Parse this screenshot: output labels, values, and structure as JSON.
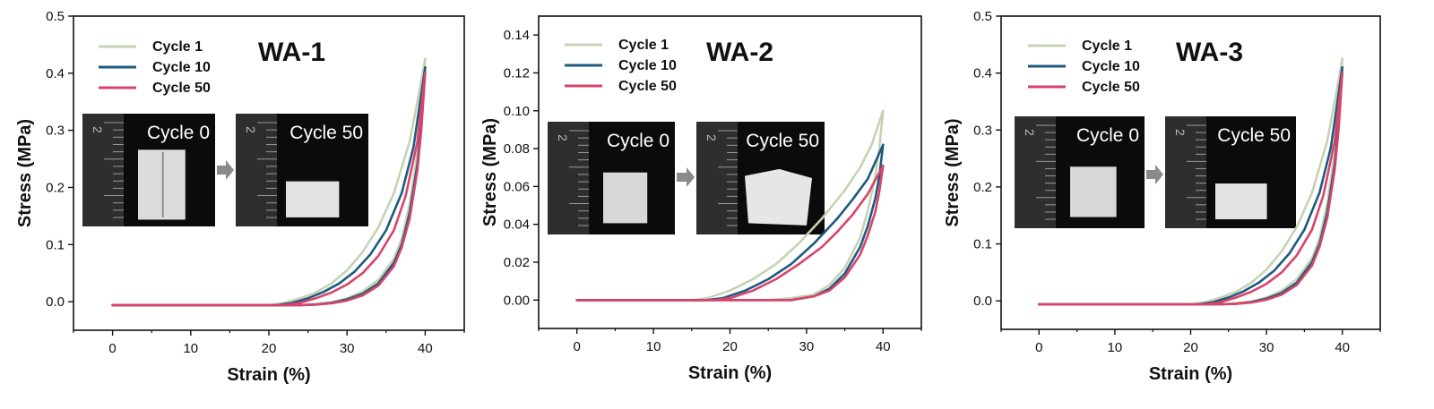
{
  "chart_data": [
    {
      "type": "line",
      "title": "WA-1",
      "xlabel": "Strain (%)",
      "ylabel": "Stress (MPa)",
      "xlim": [
        -5,
        45
      ],
      "ylim": [
        -0.05,
        0.5
      ],
      "xticks": [
        0,
        10,
        20,
        30,
        40
      ],
      "xtick_labels": [
        "0",
        "10",
        "20",
        "30",
        "40"
      ],
      "yticks": [
        0.0,
        0.1,
        0.2,
        0.3,
        0.4,
        0.5
      ],
      "ytick_labels": [
        "0.0",
        "0.1",
        "0.2",
        "0.3",
        "0.4",
        "0.5"
      ],
      "legend_position": "top-left",
      "series": [
        {
          "name": "Cycle 1",
          "color": "#c5d3b4",
          "loading": [
            [
              0,
              -0.006
            ],
            [
              20,
              -0.006
            ],
            [
              22,
              -0.002
            ],
            [
              24,
              0.006
            ],
            [
              26,
              0.016
            ],
            [
              28,
              0.032
            ],
            [
              30,
              0.055
            ],
            [
              32,
              0.087
            ],
            [
              34,
              0.13
            ],
            [
              36,
              0.19
            ],
            [
              38,
              0.28
            ],
            [
              39,
              0.35
            ],
            [
              40,
              0.425
            ]
          ],
          "unloading": [
            [
              40,
              0.425
            ],
            [
              39.5,
              0.33
            ],
            [
              39,
              0.26
            ],
            [
              38,
              0.17
            ],
            [
              37,
              0.11
            ],
            [
              36,
              0.075
            ],
            [
              34,
              0.038
            ],
            [
              32,
              0.018
            ],
            [
              30,
              0.006
            ],
            [
              28,
              -0.001
            ],
            [
              26,
              -0.004
            ],
            [
              24,
              -0.006
            ],
            [
              0,
              -0.006
            ]
          ]
        },
        {
          "name": "Cycle 10",
          "color": "#1d5a7e",
          "loading": [
            [
              0,
              -0.006
            ],
            [
              21,
              -0.006
            ],
            [
              23,
              -0.002
            ],
            [
              25,
              0.006
            ],
            [
              27,
              0.017
            ],
            [
              29,
              0.032
            ],
            [
              31,
              0.053
            ],
            [
              33,
              0.083
            ],
            [
              35,
              0.125
            ],
            [
              37,
              0.19
            ],
            [
              38.5,
              0.27
            ],
            [
              40,
              0.41
            ]
          ],
          "unloading": [
            [
              40,
              0.41
            ],
            [
              39.5,
              0.31
            ],
            [
              39,
              0.24
            ],
            [
              38,
              0.155
            ],
            [
              37,
              0.1
            ],
            [
              36,
              0.068
            ],
            [
              34,
              0.032
            ],
            [
              32,
              0.014
            ],
            [
              30,
              0.004
            ],
            [
              28,
              -0.002
            ],
            [
              26,
              -0.005
            ],
            [
              24,
              -0.006
            ],
            [
              0,
              -0.006
            ]
          ]
        },
        {
          "name": "Cycle 50",
          "color": "#d9436a",
          "loading": [
            [
              0,
              -0.006
            ],
            [
              22,
              -0.006
            ],
            [
              24,
              -0.002
            ],
            [
              26,
              0.006
            ],
            [
              28,
              0.016
            ],
            [
              30,
              0.03
            ],
            [
              32,
              0.05
            ],
            [
              34,
              0.08
            ],
            [
              36,
              0.125
            ],
            [
              37.5,
              0.185
            ],
            [
              39,
              0.28
            ],
            [
              40,
              0.4
            ]
          ],
          "unloading": [
            [
              40,
              0.4
            ],
            [
              39.5,
              0.3
            ],
            [
              39,
              0.23
            ],
            [
              38,
              0.145
            ],
            [
              37,
              0.095
            ],
            [
              36,
              0.062
            ],
            [
              34,
              0.028
            ],
            [
              32,
              0.011
            ],
            [
              30,
              0.002
            ],
            [
              28,
              -0.003
            ],
            [
              26,
              -0.005
            ],
            [
              24,
              -0.006
            ],
            [
              0,
              -0.006
            ]
          ]
        }
      ],
      "inset": {
        "left_label": "Cycle 0",
        "right_label": "Cycle 50",
        "scale_digit": "2"
      }
    },
    {
      "type": "line",
      "title": "WA-2",
      "xlabel": "Strain (%)",
      "ylabel": "Stress (MPa)",
      "xlim": [
        -5,
        45
      ],
      "ylim": [
        -0.015,
        0.15
      ],
      "xticks": [
        0,
        10,
        20,
        30,
        40
      ],
      "xtick_labels": [
        "0",
        "10",
        "20",
        "30",
        "40"
      ],
      "yticks": [
        0.0,
        0.02,
        0.04,
        0.06,
        0.08,
        0.1,
        0.12,
        0.14
      ],
      "ytick_labels": [
        "0.00",
        "0.02",
        "0.04",
        "0.06",
        "0.08",
        "0.10",
        "0.12",
        "0.14"
      ],
      "legend_position": "top-left",
      "series": [
        {
          "name": "Cycle 1",
          "color": "#c5d3b4",
          "loading": [
            [
              0,
              0
            ],
            [
              15,
              0
            ],
            [
              17,
              0.001
            ],
            [
              20,
              0.005
            ],
            [
              23,
              0.011
            ],
            [
              26,
              0.019
            ],
            [
              29,
              0.03
            ],
            [
              32,
              0.043
            ],
            [
              35,
              0.058
            ],
            [
              37,
              0.07
            ],
            [
              38.5,
              0.082
            ],
            [
              40,
              0.1
            ]
          ],
          "unloading": [
            [
              40,
              0.1
            ],
            [
              39.5,
              0.08
            ],
            [
              39,
              0.066
            ],
            [
              38,
              0.047
            ],
            [
              37,
              0.033
            ],
            [
              35,
              0.017
            ],
            [
              33,
              0.008
            ],
            [
              31,
              0.003
            ],
            [
              28,
              0.001
            ],
            [
              25,
              0
            ],
            [
              0,
              0
            ]
          ]
        },
        {
          "name": "Cycle 10",
          "color": "#1d5a7e",
          "loading": [
            [
              0,
              0
            ],
            [
              17,
              0
            ],
            [
              19,
              0.001
            ],
            [
              22,
              0.005
            ],
            [
              25,
              0.011
            ],
            [
              28,
              0.019
            ],
            [
              31,
              0.03
            ],
            [
              34,
              0.043
            ],
            [
              36,
              0.053
            ],
            [
              38,
              0.064
            ],
            [
              40,
              0.082
            ]
          ],
          "unloading": [
            [
              40,
              0.082
            ],
            [
              39.5,
              0.065
            ],
            [
              39,
              0.054
            ],
            [
              38,
              0.039
            ],
            [
              37,
              0.028
            ],
            [
              35,
              0.014
            ],
            [
              33,
              0.006
            ],
            [
              31,
              0.002
            ],
            [
              28,
              0
            ],
            [
              0,
              0
            ]
          ]
        },
        {
          "name": "Cycle 50",
          "color": "#d9436a",
          "loading": [
            [
              0,
              0
            ],
            [
              18,
              0
            ],
            [
              20,
              0.001
            ],
            [
              23,
              0.005
            ],
            [
              26,
              0.011
            ],
            [
              29,
              0.019
            ],
            [
              32,
              0.028
            ],
            [
              34,
              0.036
            ],
            [
              36,
              0.045
            ],
            [
              38,
              0.056
            ],
            [
              40,
              0.071
            ]
          ],
          "unloading": [
            [
              40,
              0.071
            ],
            [
              39.5,
              0.057
            ],
            [
              39,
              0.047
            ],
            [
              38,
              0.034
            ],
            [
              37,
              0.024
            ],
            [
              35,
              0.012
            ],
            [
              33,
              0.005
            ],
            [
              31,
              0.002
            ],
            [
              28,
              0
            ],
            [
              0,
              0
            ]
          ]
        }
      ],
      "inset": {
        "left_label": "Cycle 0",
        "right_label": "Cycle 50",
        "scale_digit": "2"
      }
    },
    {
      "type": "line",
      "title": "WA-3",
      "xlabel": "Strain (%)",
      "ylabel": "Stress (MPa)",
      "xlim": [
        -5,
        45
      ],
      "ylim": [
        -0.05,
        0.5
      ],
      "xticks": [
        0,
        10,
        20,
        30,
        40
      ],
      "xtick_labels": [
        "0",
        "10",
        "20",
        "30",
        "40"
      ],
      "yticks": [
        0.0,
        0.1,
        0.2,
        0.3,
        0.4,
        0.5
      ],
      "ytick_labels": [
        "0.0",
        "0.1",
        "0.2",
        "0.3",
        "0.4",
        "0.5"
      ],
      "legend_position": "top-left",
      "series": [
        {
          "name": "Cycle 1",
          "color": "#c5d3b4",
          "loading": [
            [
              0,
              -0.006
            ],
            [
              20,
              -0.006
            ],
            [
              22,
              -0.002
            ],
            [
              24,
              0.006
            ],
            [
              26,
              0.016
            ],
            [
              28,
              0.032
            ],
            [
              30,
              0.055
            ],
            [
              32,
              0.087
            ],
            [
              34,
              0.13
            ],
            [
              36,
              0.19
            ],
            [
              38,
              0.28
            ],
            [
              39,
              0.35
            ],
            [
              40,
              0.425
            ]
          ],
          "unloading": [
            [
              40,
              0.425
            ],
            [
              39.5,
              0.33
            ],
            [
              39,
              0.26
            ],
            [
              38,
              0.17
            ],
            [
              37,
              0.11
            ],
            [
              36,
              0.075
            ],
            [
              34,
              0.038
            ],
            [
              32,
              0.018
            ],
            [
              30,
              0.006
            ],
            [
              28,
              -0.001
            ],
            [
              26,
              -0.004
            ],
            [
              24,
              -0.006
            ],
            [
              0,
              -0.006
            ]
          ]
        },
        {
          "name": "Cycle 10",
          "color": "#1d5a7e",
          "loading": [
            [
              0,
              -0.006
            ],
            [
              21,
              -0.006
            ],
            [
              23,
              -0.002
            ],
            [
              25,
              0.006
            ],
            [
              27,
              0.017
            ],
            [
              29,
              0.032
            ],
            [
              31,
              0.053
            ],
            [
              33,
              0.083
            ],
            [
              35,
              0.125
            ],
            [
              37,
              0.19
            ],
            [
              38.5,
              0.27
            ],
            [
              40,
              0.41
            ]
          ],
          "unloading": [
            [
              40,
              0.41
            ],
            [
              39.5,
              0.31
            ],
            [
              39,
              0.24
            ],
            [
              38,
              0.155
            ],
            [
              37,
              0.1
            ],
            [
              36,
              0.068
            ],
            [
              34,
              0.032
            ],
            [
              32,
              0.014
            ],
            [
              30,
              0.004
            ],
            [
              28,
              -0.002
            ],
            [
              26,
              -0.005
            ],
            [
              24,
              -0.006
            ],
            [
              0,
              -0.006
            ]
          ]
        },
        {
          "name": "Cycle 50",
          "color": "#d9436a",
          "loading": [
            [
              0,
              -0.006
            ],
            [
              22,
              -0.006
            ],
            [
              24,
              -0.002
            ],
            [
              26,
              0.006
            ],
            [
              28,
              0.016
            ],
            [
              30,
              0.03
            ],
            [
              32,
              0.05
            ],
            [
              34,
              0.08
            ],
            [
              36,
              0.125
            ],
            [
              37.5,
              0.185
            ],
            [
              39,
              0.28
            ],
            [
              40,
              0.4
            ]
          ],
          "unloading": [
            [
              40,
              0.4
            ],
            [
              39.5,
              0.3
            ],
            [
              39,
              0.23
            ],
            [
              38,
              0.145
            ],
            [
              37,
              0.095
            ],
            [
              36,
              0.062
            ],
            [
              34,
              0.028
            ],
            [
              32,
              0.011
            ],
            [
              30,
              0.002
            ],
            [
              28,
              -0.003
            ],
            [
              26,
              -0.005
            ],
            [
              24,
              -0.006
            ],
            [
              0,
              -0.006
            ]
          ]
        }
      ],
      "inset": {
        "left_label": "Cycle 0",
        "right_label": "Cycle 50",
        "scale_digit": "2"
      }
    }
  ]
}
